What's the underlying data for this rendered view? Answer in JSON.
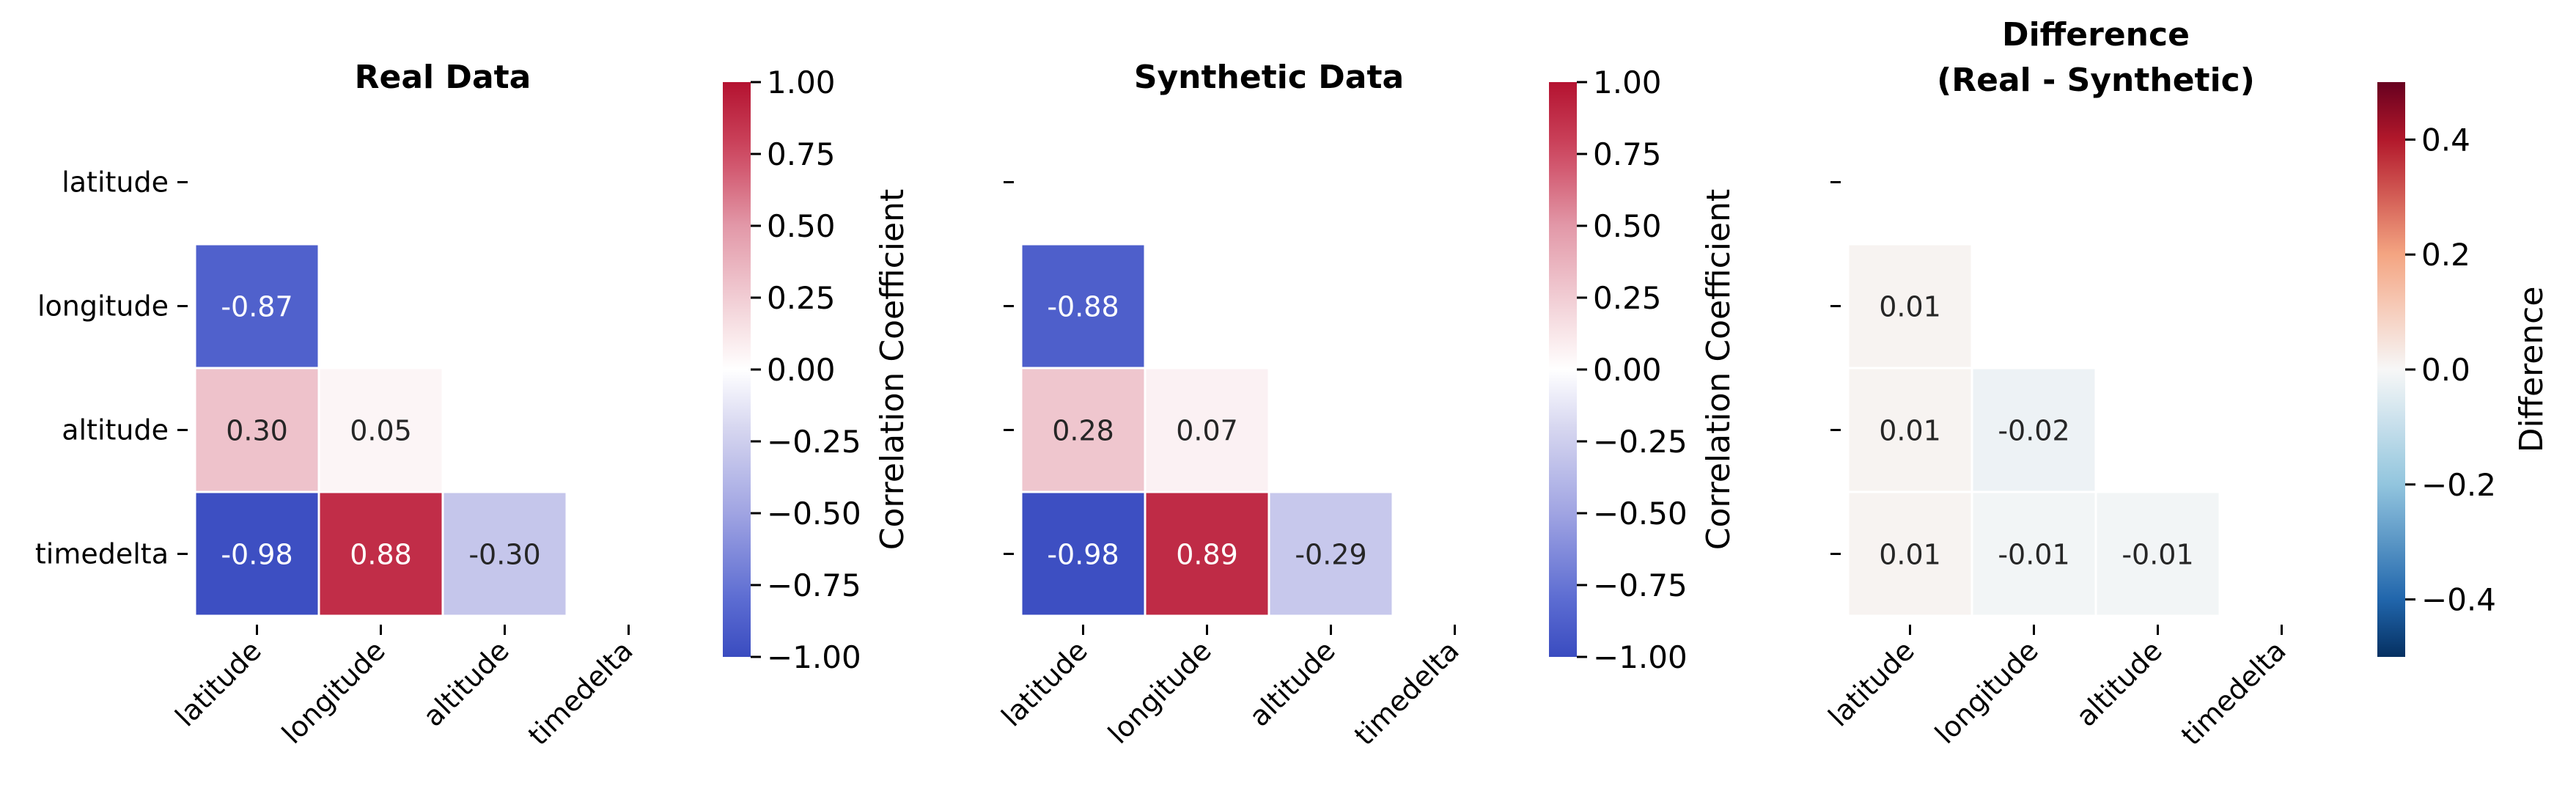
{
  "chart_data": [
    {
      "type": "heatmap",
      "title": "Real Data",
      "rows": [
        "latitude",
        "longitude",
        "altitude",
        "timedelta"
      ],
      "cols": [
        "latitude",
        "longitude",
        "altitude",
        "timedelta"
      ],
      "mask": "upper-triangle-including-diagonal",
      "cells": [
        {
          "row": 1,
          "col": 0,
          "value": -0.87,
          "label": "-0.87"
        },
        {
          "row": 2,
          "col": 0,
          "value": 0.3,
          "label": "0.30"
        },
        {
          "row": 2,
          "col": 1,
          "value": 0.05,
          "label": "0.05"
        },
        {
          "row": 3,
          "col": 0,
          "value": -0.98,
          "label": "-0.98"
        },
        {
          "row": 3,
          "col": 1,
          "value": 0.88,
          "label": "0.88"
        },
        {
          "row": 3,
          "col": 2,
          "value": -0.3,
          "label": "-0.30"
        }
      ],
      "colormap": "coolwarm",
      "colorbar": {
        "label": "Correlation Coefficient",
        "range": [
          -1.0,
          1.0
        ],
        "ticks": [
          -1.0,
          -0.75,
          -0.5,
          -0.25,
          0.0,
          0.25,
          0.5,
          0.75,
          1.0
        ],
        "tick_labels": [
          "−1.00",
          "−0.75",
          "−0.50",
          "−0.25",
          "0.00",
          "0.25",
          "0.50",
          "0.75",
          "1.00"
        ]
      },
      "show_ylabels": true
    },
    {
      "type": "heatmap",
      "title": "Synthetic Data",
      "rows": [
        "latitude",
        "longitude",
        "altitude",
        "timedelta"
      ],
      "cols": [
        "latitude",
        "longitude",
        "altitude",
        "timedelta"
      ],
      "mask": "upper-triangle-including-diagonal",
      "cells": [
        {
          "row": 1,
          "col": 0,
          "value": -0.88,
          "label": "-0.88"
        },
        {
          "row": 2,
          "col": 0,
          "value": 0.28,
          "label": "0.28"
        },
        {
          "row": 2,
          "col": 1,
          "value": 0.07,
          "label": "0.07"
        },
        {
          "row": 3,
          "col": 0,
          "value": -0.98,
          "label": "-0.98"
        },
        {
          "row": 3,
          "col": 1,
          "value": 0.89,
          "label": "0.89"
        },
        {
          "row": 3,
          "col": 2,
          "value": -0.29,
          "label": "-0.29"
        }
      ],
      "colormap": "coolwarm",
      "colorbar": {
        "label": "Correlation Coefficient",
        "range": [
          -1.0,
          1.0
        ],
        "ticks": [
          -1.0,
          -0.75,
          -0.5,
          -0.25,
          0.0,
          0.25,
          0.5,
          0.75,
          1.0
        ],
        "tick_labels": [
          "−1.00",
          "−0.75",
          "−0.50",
          "−0.25",
          "0.00",
          "0.25",
          "0.50",
          "0.75",
          "1.00"
        ]
      },
      "show_ylabels": false
    },
    {
      "type": "heatmap",
      "title": "Difference\n(Real - Synthetic)",
      "rows": [
        "latitude",
        "longitude",
        "altitude",
        "timedelta"
      ],
      "cols": [
        "latitude",
        "longitude",
        "altitude",
        "timedelta"
      ],
      "mask": "upper-triangle-including-diagonal",
      "cells": [
        {
          "row": 1,
          "col": 0,
          "value": 0.01,
          "label": "0.01"
        },
        {
          "row": 2,
          "col": 0,
          "value": 0.01,
          "label": "0.01"
        },
        {
          "row": 2,
          "col": 1,
          "value": -0.02,
          "label": "-0.02"
        },
        {
          "row": 3,
          "col": 0,
          "value": 0.01,
          "label": "0.01"
        },
        {
          "row": 3,
          "col": 1,
          "value": -0.01,
          "label": "-0.01"
        },
        {
          "row": 3,
          "col": 2,
          "value": -0.01,
          "label": "-0.01"
        }
      ],
      "colormap": "RdBu_r",
      "colorbar": {
        "label": "Difference",
        "range": [
          -0.5,
          0.5
        ],
        "ticks": [
          -0.4,
          -0.2,
          0.0,
          0.2,
          0.4
        ],
        "tick_labels": [
          "−0.4",
          "−0.2",
          "0.0",
          "0.2",
          "0.4"
        ]
      },
      "show_ylabels": false
    }
  ]
}
